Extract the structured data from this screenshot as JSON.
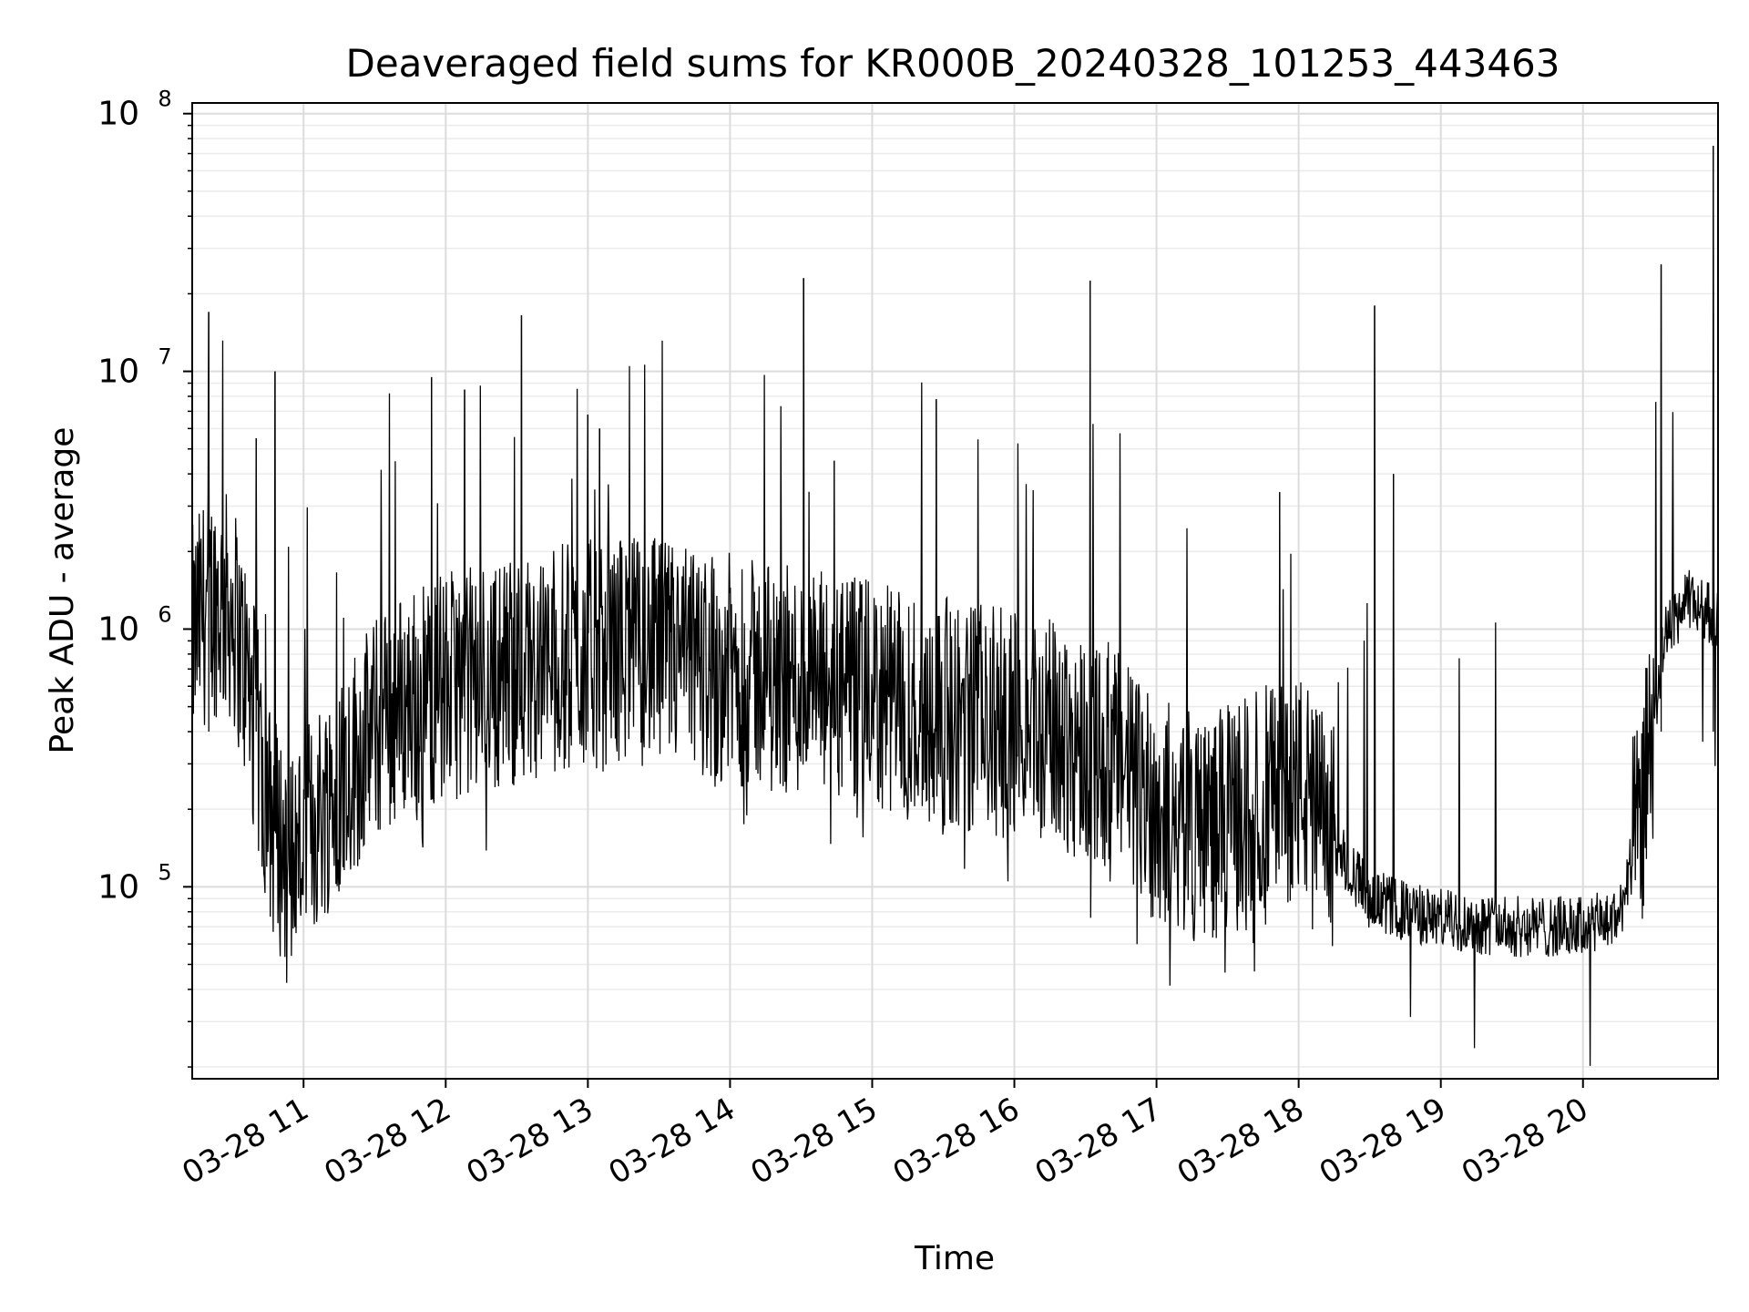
{
  "chart_data": {
    "type": "line",
    "title": "Deaveraged field sums for KR000B_20240328_101253_443463",
    "xlabel": "Time",
    "ylabel": "Peak ADU - average",
    "yscale": "log",
    "xlim": [
      "03-28 10:13",
      "03-28 20:57"
    ],
    "ylim": [
      18000,
      110000000
    ],
    "grid": true,
    "x_ticks": [
      "03-28 11",
      "03-28 12",
      "03-28 13",
      "03-28 14",
      "03-28 15",
      "03-28 16",
      "03-28 17",
      "03-28 18",
      "03-28 19",
      "03-28 20"
    ],
    "y_ticks": [
      {
        "base": "10",
        "exp": "5",
        "value": 100000
      },
      {
        "base": "10",
        "exp": "6",
        "value": 1000000
      },
      {
        "base": "10",
        "exp": "7",
        "value": 10000000
      },
      {
        "base": "10",
        "exp": "8",
        "value": 100000000
      }
    ],
    "line_color": "#000000",
    "series": [
      {
        "x": [
          "03-28 10:13",
          "03-28 10:20",
          "03-28 10:30",
          "03-28 10:37",
          "03-28 10:45",
          "03-28 10:50",
          "03-28 10:55",
          "03-28 11:00",
          "03-28 11:05",
          "03-28 11:10",
          "03-28 11:20",
          "03-28 11:30",
          "03-28 11:40",
          "03-28 11:50",
          "03-28 12:00",
          "03-28 12:15",
          "03-28 12:30",
          "03-28 12:45",
          "03-28 13:00",
          "03-28 13:15",
          "03-28 13:30",
          "03-28 13:45",
          "03-28 14:00",
          "03-28 14:15",
          "03-28 14:30",
          "03-28 14:45",
          "03-28 15:00",
          "03-28 15:15",
          "03-28 15:30",
          "03-28 15:45",
          "03-28 16:00",
          "03-28 16:15",
          "03-28 16:30",
          "03-28 16:45",
          "03-28 17:00",
          "03-28 17:15",
          "03-28 17:30",
          "03-28 17:45",
          "03-28 18:00",
          "03-28 18:15",
          "03-28 18:30",
          "03-28 18:45",
          "03-28 19:00",
          "03-28 19:15",
          "03-28 19:30",
          "03-28 19:45",
          "03-28 20:00",
          "03-28 20:15",
          "03-28 20:25",
          "03-28 20:30",
          "03-28 20:35",
          "03-28 20:45",
          "03-28 20:57"
        ],
        "y": [
          900000,
          1300000,
          1200000,
          600000,
          200000,
          150000,
          130000,
          150000,
          180000,
          220000,
          300000,
          400000,
          500000,
          550000,
          600000,
          650000,
          700000,
          750000,
          800000,
          850000,
          800000,
          750000,
          700000,
          650000,
          620000,
          580000,
          550000,
          500000,
          480000,
          450000,
          420000,
          400000,
          350000,
          300000,
          200000,
          170000,
          180000,
          220000,
          250000,
          150000,
          90000,
          80000,
          75000,
          72000,
          70000,
          70000,
          70000,
          75000,
          200000,
          450000,
          1000000,
          1300000,
          1100000
        ]
      }
    ],
    "spikes": [
      {
        "x": "03-28 10:20",
        "y": 17000000
      },
      {
        "x": "03-28 10:40",
        "y": 5500000
      },
      {
        "x": "03-28 10:48",
        "y": 10000000
      },
      {
        "x": "03-28 11:54",
        "y": 9500000
      },
      {
        "x": "03-28 12:08",
        "y": 8500000
      },
      {
        "x": "03-28 12:32",
        "y": 16500000
      },
      {
        "x": "03-28 13:00",
        "y": 6800000
      },
      {
        "x": "03-28 13:05",
        "y": 6000000
      },
      {
        "x": "03-28 14:31",
        "y": 23000000
      },
      {
        "x": "03-28 14:44",
        "y": 4500000
      },
      {
        "x": "03-28 15:27",
        "y": 7800000
      },
      {
        "x": "03-28 16:32",
        "y": 22500000
      },
      {
        "x": "03-28 17:52",
        "y": 3400000
      },
      {
        "x": "03-28 18:32",
        "y": 18000000
      },
      {
        "x": "03-28 18:40",
        "y": 4000000
      },
      {
        "x": "03-28 20:33",
        "y": 26000000
      },
      {
        "x": "03-28 20:55",
        "y": 75000000
      }
    ]
  }
}
